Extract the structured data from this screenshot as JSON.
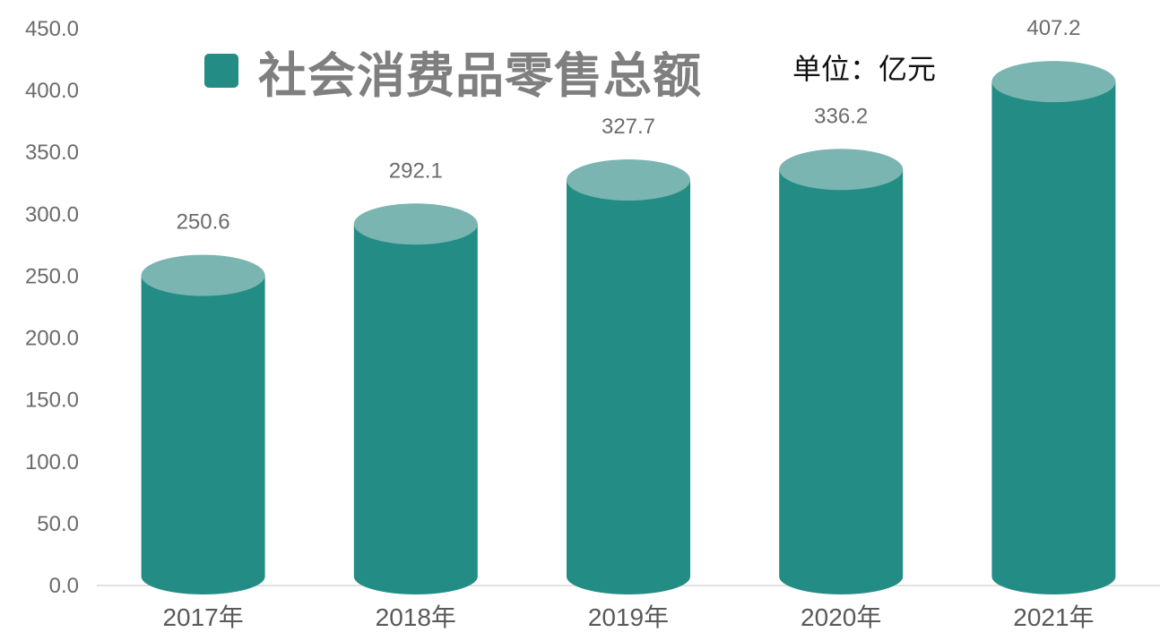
{
  "chart_data": {
    "type": "bar",
    "title": "社会消费品零售总额",
    "unit_label": "单位：亿元",
    "categories": [
      "2017年",
      "2018年",
      "2019年",
      "2020年",
      "2021年"
    ],
    "series": [
      {
        "name": "社会消费品零售总额",
        "values": [
          250.6,
          292.1,
          327.7,
          336.2,
          407.2
        ]
      }
    ],
    "data_labels": [
      "250.6",
      "292.1",
      "327.7",
      "336.2",
      "407.2"
    ],
    "y_ticks": [
      "0.0",
      "50.0",
      "100.0",
      "150.0",
      "200.0",
      "250.0",
      "300.0",
      "350.0",
      "400.0",
      "450.0"
    ],
    "ylim": [
      0,
      450
    ],
    "xlabel": "",
    "ylabel": "",
    "grid": false,
    "legend_position": "top",
    "bar_style": "cylinder",
    "colors": {
      "bar_body": "#238c85",
      "bar_top": "#7bb5b2",
      "axis_line": "#d9d9d9"
    }
  }
}
